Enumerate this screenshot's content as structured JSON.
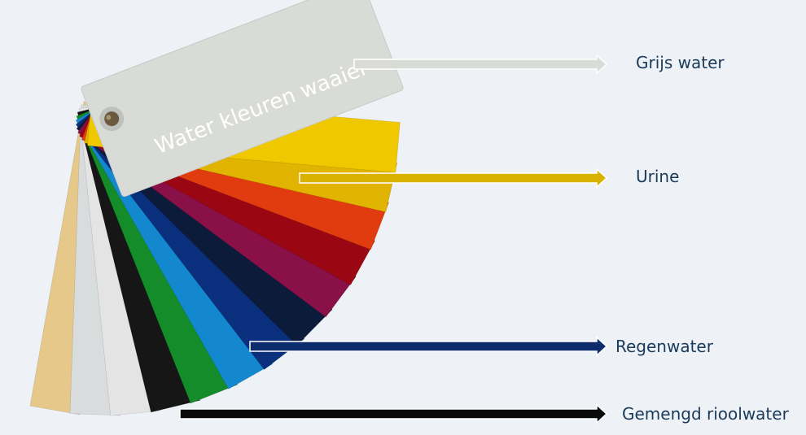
{
  "fan": {
    "title": "Water kleuren waaier",
    "card_colors": [
      "#e6c88a",
      "#d9dcdc",
      "#e4e4e4",
      "#161616",
      "#148c2a",
      "#1388cf",
      "#0a2f7c",
      "#0d1b3a",
      "#8a1048",
      "#9a0612",
      "#e03c10",
      "#e0b400",
      "#f0c800",
      "#d9dbd7"
    ]
  },
  "labels": {
    "grijs": "Grijs water",
    "urine": "Urine",
    "regen": "Regenwater",
    "gemengd": "Gemengd rioolwater"
  },
  "colors": {
    "label_text": "#1a3a5a",
    "arrow_grijs": "#d9dbd7",
    "arrow_urine": "#d9b200",
    "arrow_regen": "#0c2c6b",
    "arrow_gemengd": "#0a0a0a",
    "background": "#eef2f7"
  }
}
